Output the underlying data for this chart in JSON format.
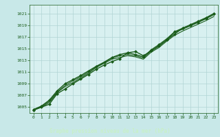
{
  "bg_color": "#c8e8e8",
  "plot_bg_color": "#d8f0f0",
  "grid_color": "#b0d4d4",
  "line_color": "#1a5c1a",
  "marker_color": "#1a5c1a",
  "xlabel": "Graphe pression niveau de la mer (hPa)",
  "xlabel_color": "#c8f0c8",
  "xlabel_bg": "#1a5c1a",
  "tick_color": "#1a5c1a",
  "xlim": [
    -0.5,
    23.5
  ],
  "ylim": [
    1004.0,
    1022.5
  ],
  "yticks": [
    1005,
    1007,
    1009,
    1011,
    1013,
    1015,
    1017,
    1019,
    1021
  ],
  "xticks": [
    0,
    1,
    2,
    3,
    4,
    5,
    6,
    7,
    8,
    9,
    10,
    11,
    12,
    13,
    14,
    15,
    16,
    17,
    18,
    19,
    20,
    21,
    22,
    23
  ],
  "lines": [
    {
      "x": [
        0,
        1,
        2,
        3,
        4,
        5,
        6,
        7,
        8,
        9,
        10,
        11,
        12,
        13,
        14,
        15,
        16,
        17,
        18,
        19,
        20,
        21,
        22,
        23
      ],
      "y": [
        1004.5,
        1005.0,
        1005.5,
        1007.3,
        1008.1,
        1009.0,
        1009.8,
        1010.6,
        1011.5,
        1012.2,
        1012.8,
        1013.3,
        1014.3,
        1014.5,
        1013.8,
        1014.6,
        1015.5,
        1016.5,
        1017.5,
        1018.5,
        1019.0,
        1019.5,
        1020.2,
        1021.0
      ],
      "marker": "D",
      "lw": 1.0
    },
    {
      "x": [
        0,
        1,
        2,
        3,
        4,
        5,
        6,
        7,
        8,
        9,
        10,
        11,
        12,
        13,
        14,
        15,
        16,
        17,
        18,
        19,
        20,
        21,
        22,
        23
      ],
      "y": [
        1004.5,
        1005.0,
        1005.8,
        1007.5,
        1008.5,
        1009.2,
        1010.0,
        1010.8,
        1011.8,
        1012.5,
        1013.2,
        1013.5,
        1013.8,
        1013.6,
        1013.2,
        1014.4,
        1015.2,
        1016.3,
        1017.3,
        1018.0,
        1018.6,
        1019.2,
        1019.8,
        1020.5
      ],
      "marker": null,
      "lw": 0.8
    },
    {
      "x": [
        0,
        1,
        2,
        3,
        4,
        5,
        6,
        7,
        8,
        9,
        10,
        11,
        12,
        13,
        14,
        15,
        16,
        17,
        18,
        19,
        20,
        21,
        22,
        23
      ],
      "y": [
        1004.6,
        1005.1,
        1006.0,
        1007.6,
        1008.7,
        1009.5,
        1010.2,
        1011.0,
        1011.9,
        1012.6,
        1013.4,
        1013.8,
        1014.0,
        1013.8,
        1013.4,
        1014.6,
        1015.4,
        1016.5,
        1017.8,
        1018.3,
        1018.9,
        1019.5,
        1020.1,
        1020.8
      ],
      "marker": null,
      "lw": 0.8
    },
    {
      "x": [
        0,
        1,
        2,
        3,
        4,
        5,
        6,
        7,
        8,
        9,
        10,
        11,
        12,
        13,
        14,
        15,
        16,
        17,
        18,
        19,
        20,
        21,
        22,
        23
      ],
      "y": [
        1004.6,
        1005.2,
        1006.2,
        1007.8,
        1009.0,
        1009.7,
        1010.4,
        1011.2,
        1012.0,
        1012.7,
        1013.5,
        1014.0,
        1014.3,
        1014.0,
        1013.6,
        1014.8,
        1015.7,
        1016.7,
        1017.9,
        1018.5,
        1019.1,
        1019.7,
        1020.3,
        1021.0
      ],
      "marker": "D",
      "lw": 1.0
    }
  ]
}
